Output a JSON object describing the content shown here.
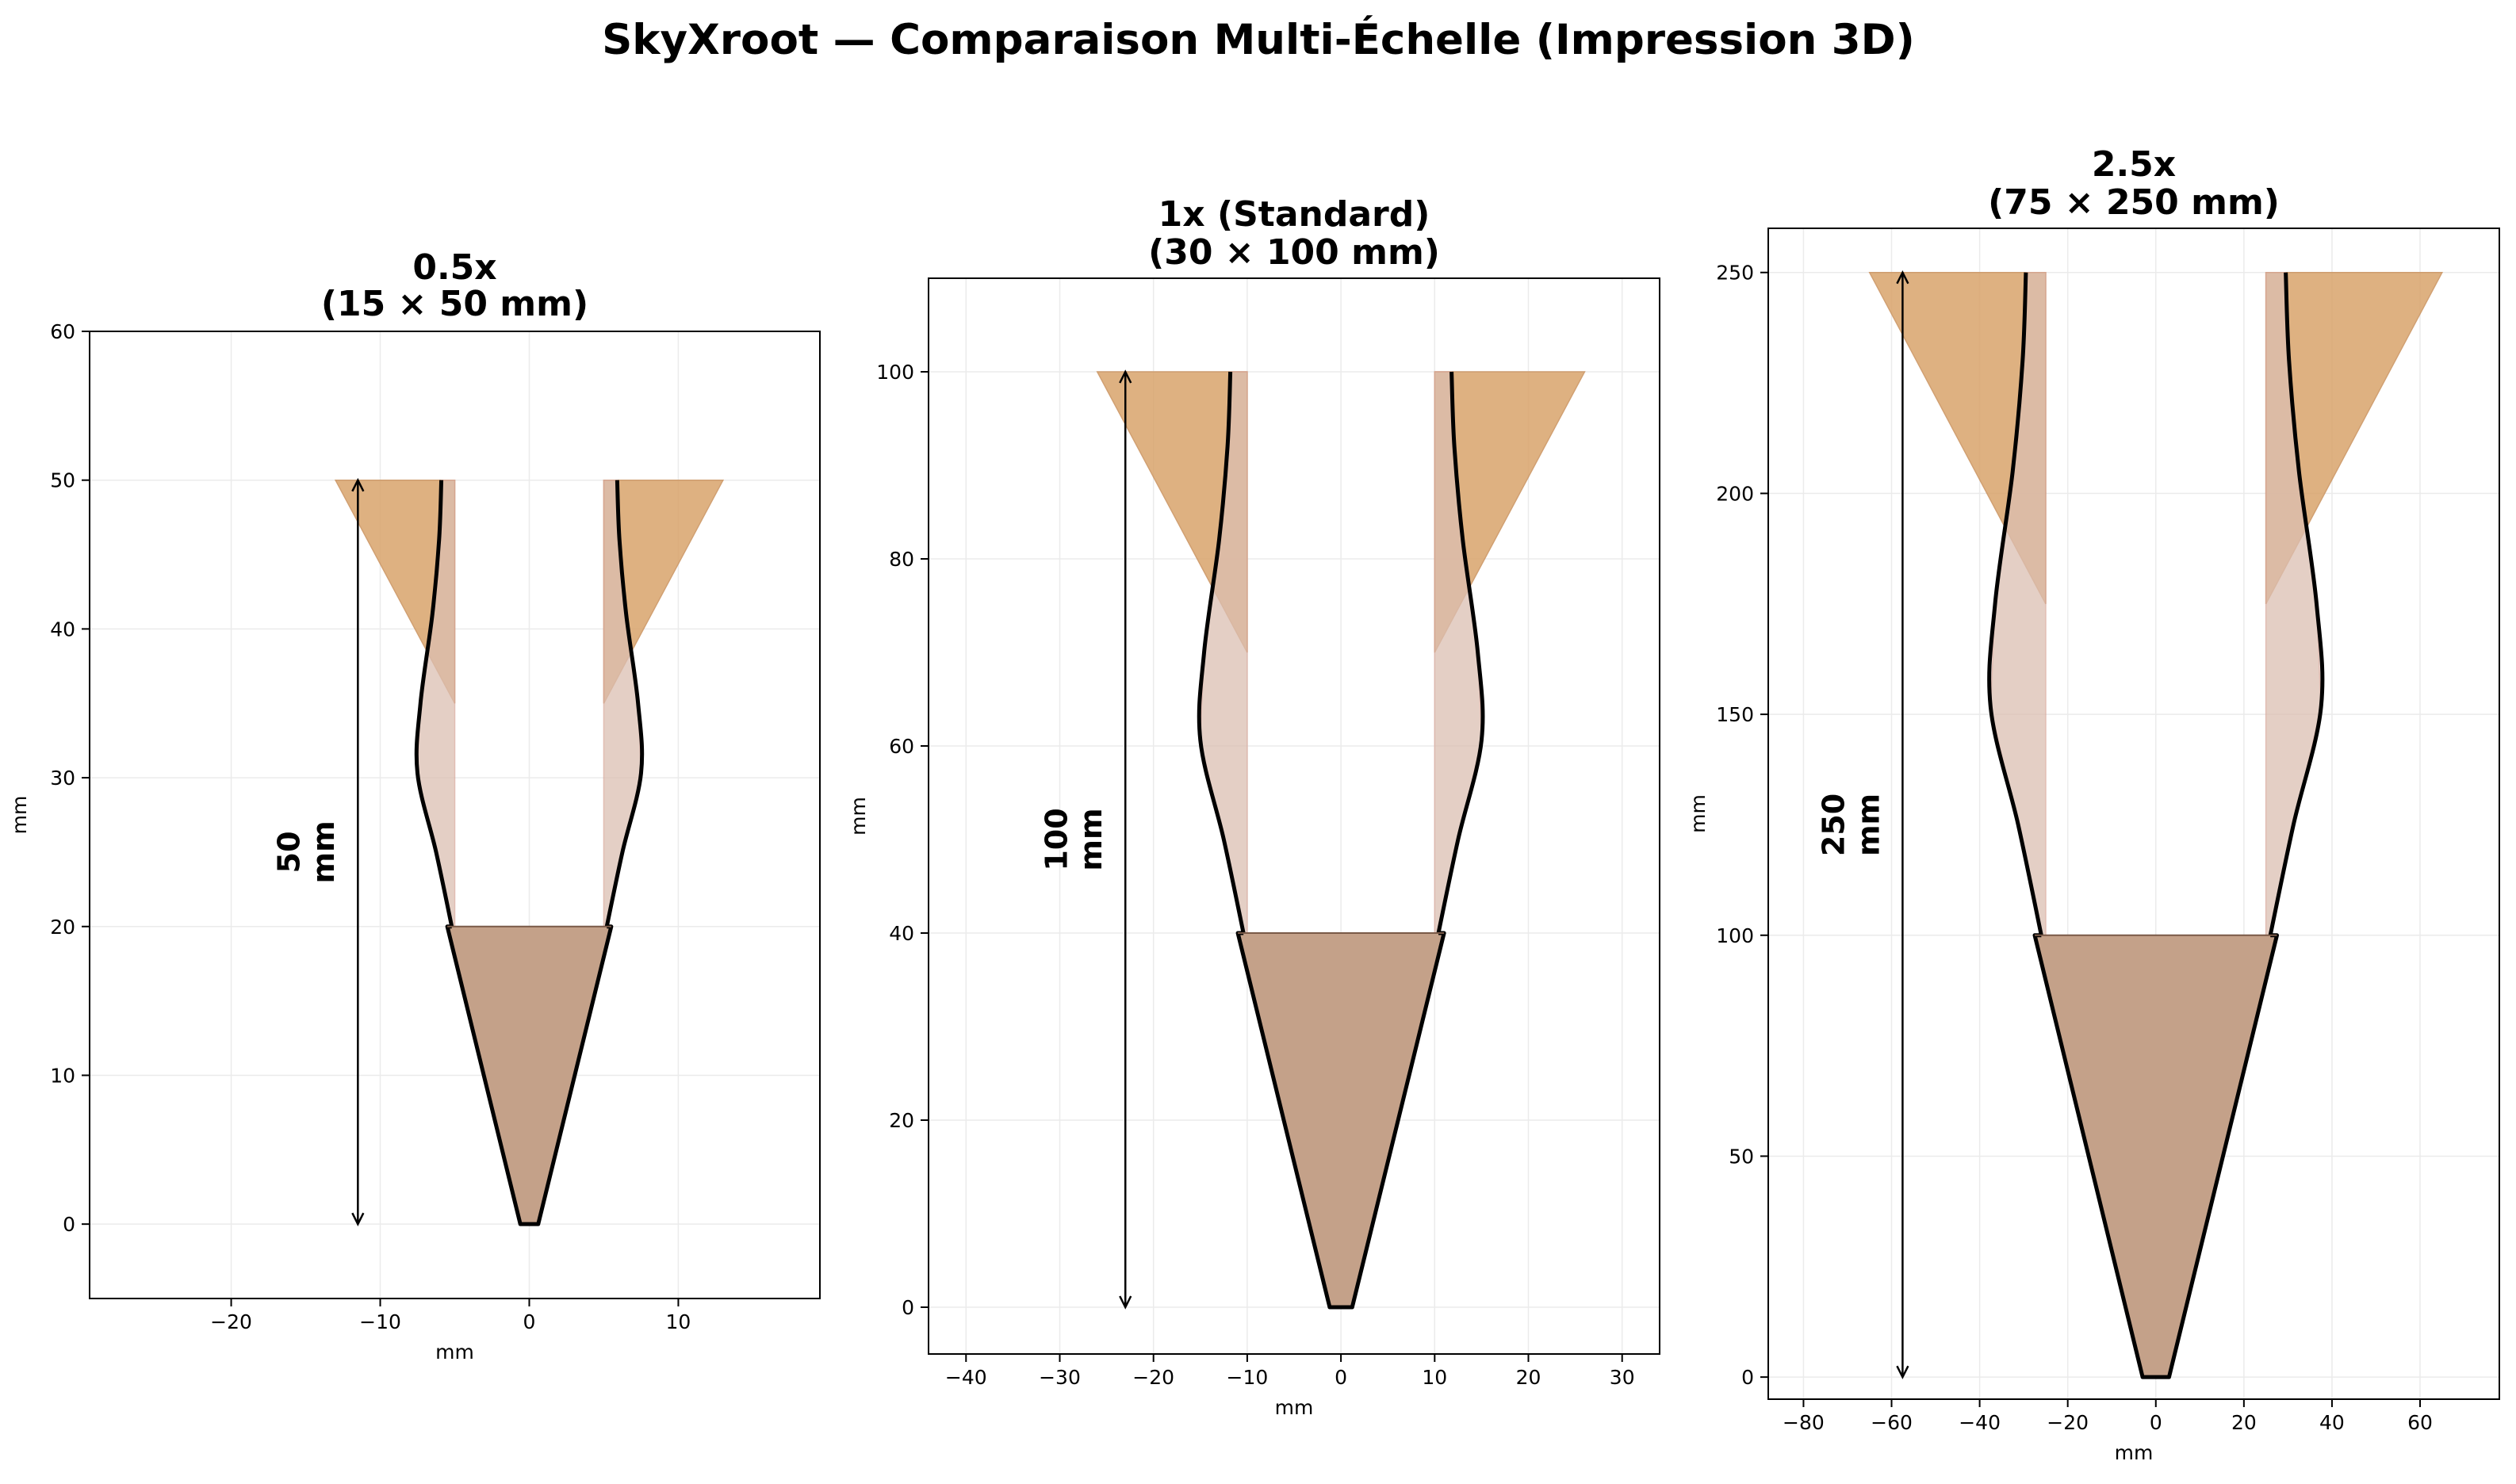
{
  "figure_title": "SkyXroot — Comparaison Multi-Échelle (Impression 3D)",
  "colors": {
    "horn": "#d9a46c",
    "flare": "#dcbfb2",
    "body": "#c4a189",
    "outline": "#000000",
    "grid": "#ebebeb"
  },
  "chart_data": [
    {
      "type": "diagram",
      "title_line1": "0.5x",
      "title_line2": "(15 × 50 mm)",
      "scale": 0.5,
      "xlabel": "mm",
      "ylabel": "mm",
      "xlim": [
        -29.5,
        19.5
      ],
      "ylim": [
        -5,
        60
      ],
      "xticks": [
        -20,
        -10,
        0,
        10
      ],
      "yticks": [
        0,
        10,
        20,
        30,
        40,
        50,
        60
      ],
      "xtick_labels": [
        "−20",
        "−10",
        "0",
        "10"
      ],
      "ytick_labels": [
        "0",
        "10",
        "20",
        "30",
        "40",
        "50",
        "60"
      ],
      "dimension_label_line1": "50",
      "dimension_label_line2": "mm",
      "height_mm": 50
    },
    {
      "type": "diagram",
      "title_line1": "1x (Standard)",
      "title_line2": "(30 × 100 mm)",
      "scale": 1,
      "xlabel": "mm",
      "ylabel": "mm",
      "xlim": [
        -44,
        34
      ],
      "ylim": [
        -5,
        110
      ],
      "xticks": [
        -40,
        -30,
        -20,
        -10,
        0,
        10,
        20,
        30
      ],
      "yticks": [
        0,
        20,
        40,
        60,
        80,
        100
      ],
      "xtick_labels": [
        "−40",
        "−30",
        "−20",
        "−10",
        "0",
        "10",
        "20",
        "30"
      ],
      "ytick_labels": [
        "0",
        "20",
        "40",
        "60",
        "80",
        "100"
      ],
      "dimension_label_line1": "100",
      "dimension_label_line2": "mm",
      "height_mm": 100
    },
    {
      "type": "diagram",
      "title_line1": "2.5x",
      "title_line2": "(75 × 250 mm)",
      "scale": 2.5,
      "xlabel": "mm",
      "ylabel": "mm",
      "xlim": [
        -88,
        78
      ],
      "ylim": [
        -5,
        260
      ],
      "xticks": [
        -80,
        -60,
        -40,
        -20,
        0,
        20,
        40,
        60
      ],
      "yticks": [
        0,
        50,
        100,
        150,
        200,
        250
      ],
      "xtick_labels": [
        "−80",
        "−60",
        "−40",
        "−20",
        "0",
        "20",
        "40",
        "60"
      ],
      "ytick_labels": [
        "0",
        "50",
        "100",
        "150",
        "200",
        "250"
      ],
      "dimension_label_line1": "250",
      "dimension_label_line2": "mm",
      "height_mm": 250
    }
  ]
}
